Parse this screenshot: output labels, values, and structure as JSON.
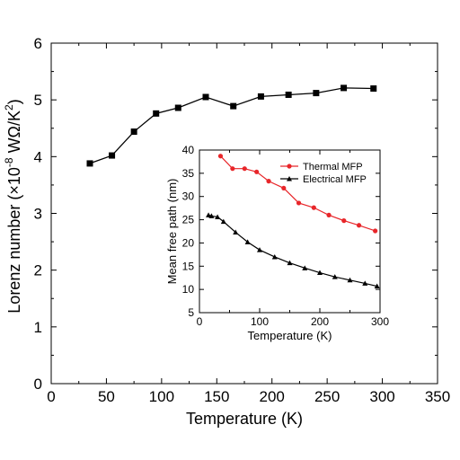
{
  "chart_data": [
    {
      "id": "main",
      "type": "line",
      "xlabel": "Temperature (K)",
      "ylabel": {
        "main": "Lorenz number (×10",
        "exp1": "-8",
        "mid": " WΩ/K",
        "exp2": "2",
        "end": ")"
      },
      "xlim": [
        0,
        350
      ],
      "ylim": [
        0,
        6
      ],
      "xticks": [
        0,
        50,
        100,
        150,
        200,
        250,
        300,
        350
      ],
      "yticks": [
        0,
        1,
        2,
        3,
        4,
        5,
        6
      ],
      "grid": false,
      "series": [
        {
          "color": "#000000",
          "marker": "square",
          "x": [
            35,
            55,
            75,
            95,
            115,
            140,
            165,
            190,
            215,
            240,
            265,
            292
          ],
          "y": [
            3.88,
            4.02,
            4.44,
            4.76,
            4.86,
            5.05,
            4.89,
            5.06,
            5.09,
            5.12,
            5.21,
            5.2
          ]
        }
      ]
    },
    {
      "id": "inset",
      "type": "line",
      "xlabel": "Temperature (K)",
      "ylabel": "Mean free path (nm)",
      "xlim": [
        0,
        300
      ],
      "ylim": [
        5,
        40
      ],
      "xticks": [
        0,
        100,
        200,
        300
      ],
      "yticks": [
        5,
        10,
        15,
        20,
        25,
        30,
        35,
        40
      ],
      "grid": false,
      "legend_position": "top-right",
      "series": [
        {
          "name": "Thermal MFP",
          "color": "#e8262a",
          "marker": "circle",
          "x": [
            35,
            55,
            75,
            95,
            115,
            140,
            165,
            190,
            215,
            240,
            265,
            292
          ],
          "y": [
            38.7,
            36.0,
            36.0,
            35.3,
            33.3,
            31.8,
            28.6,
            27.6,
            26.0,
            24.8,
            23.8,
            22.6
          ]
        },
        {
          "name": "Electrical MFP",
          "color": "#000000",
          "marker": "triangle",
          "x": [
            15,
            20,
            30,
            40,
            60,
            80,
            100,
            125,
            150,
            175,
            200,
            225,
            250,
            275,
            295
          ],
          "y": [
            26.0,
            25.8,
            25.6,
            24.6,
            22.3,
            20.2,
            18.5,
            17.0,
            15.7,
            14.6,
            13.6,
            12.7,
            12.0,
            11.3,
            10.7
          ]
        }
      ]
    }
  ]
}
